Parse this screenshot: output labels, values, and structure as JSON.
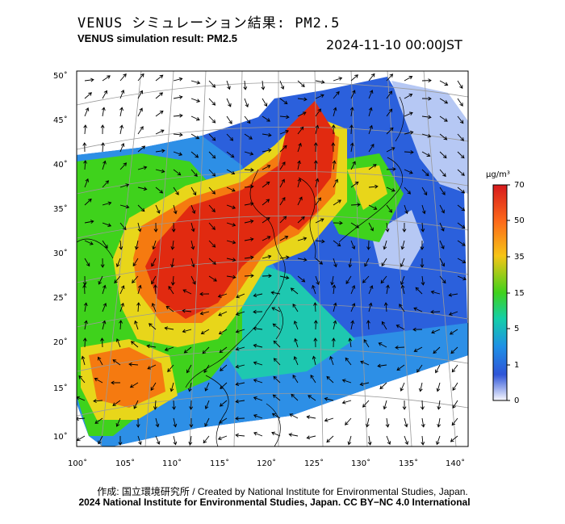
{
  "header": {
    "title_jp": "VENUS シミュレーション結果: PM2.5",
    "title_en": "VENUS simulation result: PM2.5",
    "timestamp": "2024-11-10 00:00JST"
  },
  "axes": {
    "lat_labels": [
      "50˚",
      "45˚",
      "40˚",
      "35˚",
      "30˚",
      "25˚",
      "20˚",
      "15˚",
      "10˚"
    ],
    "lon_labels": [
      "100˚",
      "105˚",
      "110˚",
      "115˚",
      "120˚",
      "125˚",
      "130˚",
      "135˚",
      "140˚"
    ]
  },
  "colorbar": {
    "unit": "μg/m³",
    "labels": [
      "70",
      "50",
      "35",
      "15",
      "5",
      "1",
      "0"
    ],
    "colors": [
      "#d7191c",
      "#fd6a1a",
      "#f6c516",
      "#3fd21c",
      "#14cfa8",
      "#1e90e6",
      "#2f55d8",
      "#f8f8ff"
    ]
  },
  "field_colors": {
    "high": "#e12a10",
    "upper": "#f57a10",
    "mid": "#e8d61a",
    "green": "#3fd21c",
    "teal": "#1ec8b0",
    "blue": "#2d8fe6",
    "dblue": "#2b60dc",
    "pale": "#b6c8f4"
  },
  "footer": {
    "credit_line1": "作成: 国立環境研究所 / Created by National Institute for Environmental Studies, Japan.",
    "credit_line2": "2024 National Institute for Environmental Studies, Japan. CC BY−NC 4.0 International"
  }
}
